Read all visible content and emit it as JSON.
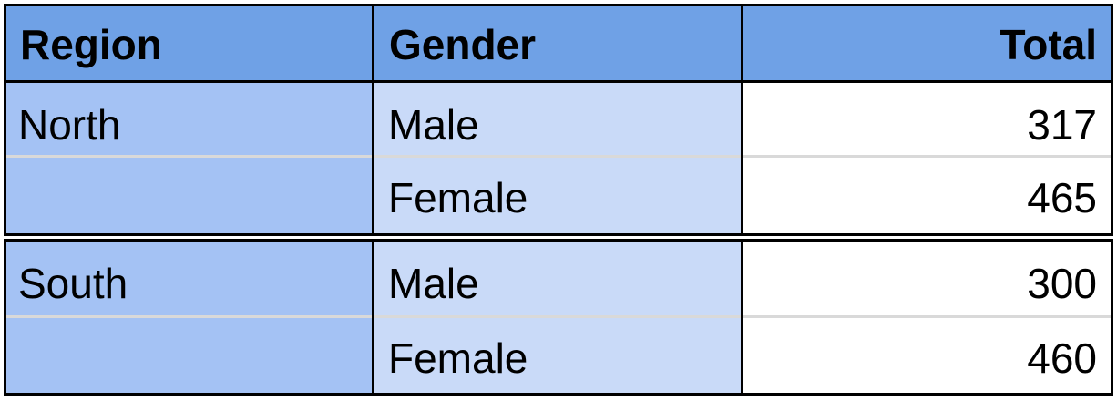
{
  "colors": {
    "header_bg": "#6fa1e6",
    "region_bg": "#a4c2f4",
    "gender_bg": "#c9daf8",
    "total_bg": "#ffffff",
    "border": "#000000"
  },
  "table": {
    "headers": {
      "region": "Region",
      "gender": "Gender",
      "total": "Total"
    },
    "groups": [
      {
        "region": "North",
        "rows": [
          {
            "gender": "Male",
            "total": "317"
          },
          {
            "gender": "Female",
            "total": "465"
          }
        ]
      },
      {
        "region": "South",
        "rows": [
          {
            "gender": "Male",
            "total": "300"
          },
          {
            "gender": "Female",
            "total": "460"
          }
        ]
      }
    ]
  }
}
